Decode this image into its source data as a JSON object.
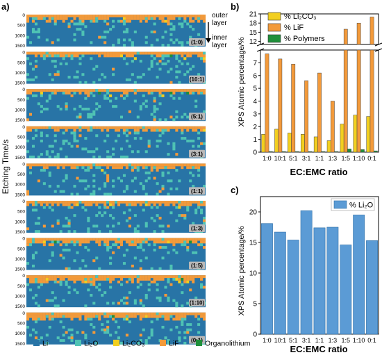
{
  "panel_labels": {
    "a": "a)",
    "b": "b)",
    "c": "c)"
  },
  "colors": {
    "li": "#2874a6",
    "li2o": "#4fc3b4",
    "li2co3": "#f2cf1f",
    "lif": "#f39a3a",
    "polymers": "#1f8f3a",
    "organolithium": "#1f8f3a",
    "bar_c": "#5b9bd5"
  },
  "chart_data": [
    {
      "type": "heatmap",
      "panel": "a",
      "ylabel": "Etching Time/s",
      "y_ticks": [
        "0",
        "500",
        "1000",
        "1500"
      ],
      "annotation_top": "outer\nlayer",
      "annotation_bottom": "inner\nlayer",
      "strips": [
        "(1:0)",
        "(10:1)",
        "(5:1)",
        "(3:1)",
        "(1:1)",
        "(1:3)",
        "(1:5)",
        "(1:10)",
        "(0:1)"
      ],
      "legend": [
        {
          "key": "li",
          "label": "Li"
        },
        {
          "key": "li2o",
          "label": "Li₂O"
        },
        {
          "key": "li2co3",
          "label": "Li₂CO₃"
        },
        {
          "key": "lif",
          "label": "LiF"
        },
        {
          "key": "organolithium",
          "label": "Organolithium"
        }
      ]
    },
    {
      "type": "bar",
      "panel": "b",
      "categories": [
        "1:0",
        "10:1",
        "5:1",
        "3:1",
        "1:1",
        "1:3",
        "1:5",
        "1:10",
        "0:1"
      ],
      "series": [
        {
          "name": "% Li₂CO₃",
          "color_key": "li2co3",
          "values": [
            1.4,
            1.8,
            1.5,
            1.4,
            1.2,
            0.9,
            2.2,
            2.9,
            2.8
          ]
        },
        {
          "name": "% LiF",
          "color_key": "lif",
          "values": [
            7.7,
            7.3,
            6.9,
            5.6,
            6.2,
            4.0,
            16.0,
            18.0,
            20.0
          ]
        },
        {
          "name": "% Polymers",
          "color_key": "polymers",
          "values": [
            0.05,
            0.05,
            0.05,
            0.05,
            0.05,
            0.05,
            0.25,
            0.2,
            0.1
          ]
        }
      ],
      "xlabel": "EC:EMC ratio",
      "ylabel": "XPS Atomic percentage/%",
      "y_ticks_lower": [
        0,
        1,
        2,
        3,
        4,
        5,
        6,
        7
      ],
      "y_ticks_upper": [
        12,
        15,
        18,
        21
      ],
      "ylim_lower": [
        0,
        8
      ],
      "ylim_upper": [
        11,
        21
      ],
      "axis_break": true,
      "legend_position": "top-left"
    },
    {
      "type": "bar",
      "panel": "c",
      "categories": [
        "1:0",
        "10:1",
        "5:1",
        "3:1",
        "1:1",
        "1:3",
        "1:5",
        "1:10",
        "0:1"
      ],
      "series": [
        {
          "name": "% Li₂O",
          "color_key": "bar_c",
          "values": [
            18.1,
            16.7,
            15.4,
            20.2,
            17.4,
            17.5,
            14.6,
            19.5,
            15.3
          ]
        }
      ],
      "xlabel": "EC:EMC ratio",
      "ylabel": "XPS Atomic percentage/%",
      "y_ticks": [
        0,
        5,
        10,
        15,
        20
      ],
      "ylim": [
        0,
        22.5
      ],
      "legend_position": "top-right"
    }
  ]
}
